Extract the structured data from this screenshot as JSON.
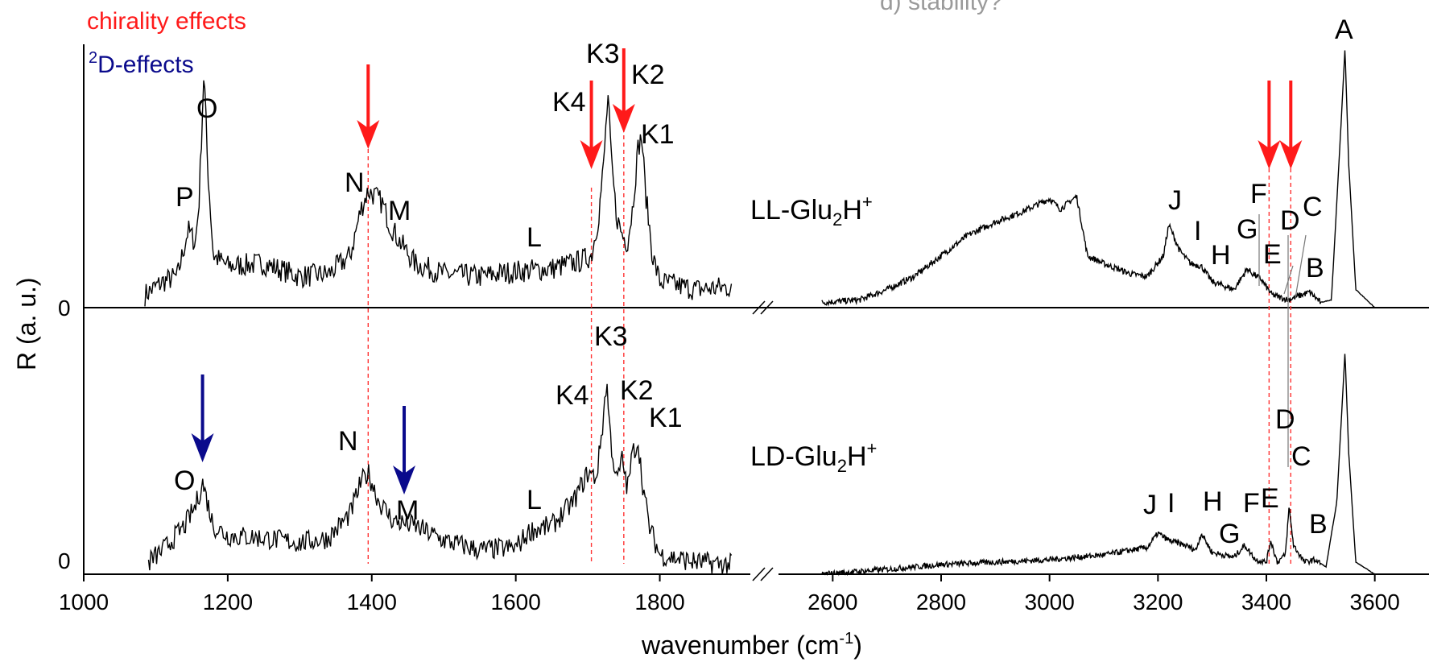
{
  "chart_data": {
    "type": "line",
    "xlabel": "wavenumber (cm",
    "xlabel_sup": "-1",
    "xlabel_close": ")",
    "ylabel": "R (a. u.)",
    "x_ticks": [
      1000,
      1200,
      1400,
      1600,
      1800,
      2600,
      2800,
      3000,
      3200,
      3400,
      3600
    ],
    "x_ranges": [
      [
        1000,
        1900
      ],
      [
        2500,
        3700
      ]
    ],
    "axis_break": true,
    "zero_label": "0",
    "legend": {
      "chirality": "chirality effects",
      "deuteration_sup": "2",
      "deuteration": "D-effects",
      "chirality_color": "#ff1a1a",
      "deuteration_color": "#0a0a8c"
    },
    "faint_text": "d) stability?",
    "series": [
      {
        "name": "LL-Glu",
        "name_sub": "2",
        "name_end": "H",
        "name_sup": "+",
        "low_region": [
          [
            1085,
            0.05
          ],
          [
            1110,
            0.1
          ],
          [
            1130,
            0.12
          ],
          [
            1145,
            0.3
          ],
          [
            1155,
            0.25
          ],
          [
            1160,
            0.4
          ],
          [
            1167,
            0.92
          ],
          [
            1172,
            0.55
          ],
          [
            1180,
            0.2
          ],
          [
            1200,
            0.16
          ],
          [
            1250,
            0.17
          ],
          [
            1300,
            0.12
          ],
          [
            1340,
            0.13
          ],
          [
            1370,
            0.2
          ],
          [
            1385,
            0.38
          ],
          [
            1395,
            0.45
          ],
          [
            1405,
            0.43
          ],
          [
            1415,
            0.4
          ],
          [
            1425,
            0.32
          ],
          [
            1440,
            0.25
          ],
          [
            1460,
            0.17
          ],
          [
            1500,
            0.13
          ],
          [
            1550,
            0.12
          ],
          [
            1600,
            0.14
          ],
          [
            1650,
            0.15
          ],
          [
            1690,
            0.18
          ],
          [
            1705,
            0.2
          ],
          [
            1715,
            0.35
          ],
          [
            1722,
            0.55
          ],
          [
            1728,
            0.82
          ],
          [
            1733,
            0.55
          ],
          [
            1740,
            0.35
          ],
          [
            1748,
            0.28
          ],
          [
            1755,
            0.25
          ],
          [
            1762,
            0.38
          ],
          [
            1770,
            0.62
          ],
          [
            1775,
            0.66
          ],
          [
            1780,
            0.45
          ],
          [
            1790,
            0.2
          ],
          [
            1800,
            0.1
          ],
          [
            1850,
            0.07
          ],
          [
            1900,
            0.08
          ]
        ],
        "high_region": [
          [
            2580,
            0.02
          ],
          [
            2650,
            0.03
          ],
          [
            2700,
            0.07
          ],
          [
            2750,
            0.12
          ],
          [
            2800,
            0.2
          ],
          [
            2850,
            0.28
          ],
          [
            2900,
            0.33
          ],
          [
            2950,
            0.37
          ],
          [
            3000,
            0.42
          ],
          [
            3020,
            0.38
          ],
          [
            3050,
            0.43
          ],
          [
            3070,
            0.2
          ],
          [
            3100,
            0.17
          ],
          [
            3150,
            0.13
          ],
          [
            3180,
            0.12
          ],
          [
            3210,
            0.2
          ],
          [
            3220,
            0.32
          ],
          [
            3240,
            0.22
          ],
          [
            3260,
            0.17
          ],
          [
            3280,
            0.16
          ],
          [
            3300,
            0.1
          ],
          [
            3340,
            0.07
          ],
          [
            3365,
            0.15
          ],
          [
            3375,
            0.13
          ],
          [
            3390,
            0.11
          ],
          [
            3410,
            0.05
          ],
          [
            3440,
            0.03
          ],
          [
            3480,
            0.06
          ],
          [
            3500,
            0.02
          ],
          [
            3520,
            0.03
          ],
          [
            3535,
            0.6
          ],
          [
            3545,
            1.0
          ],
          [
            3552,
            0.55
          ],
          [
            3565,
            0.07
          ],
          [
            3600,
            0.0
          ]
        ]
      },
      {
        "name": "LD-Glu",
        "name_sub": "2",
        "name_end": "H",
        "name_sup": "+",
        "low_region": [
          [
            1090,
            0.05
          ],
          [
            1110,
            0.1
          ],
          [
            1140,
            0.2
          ],
          [
            1155,
            0.28
          ],
          [
            1165,
            0.38
          ],
          [
            1180,
            0.2
          ],
          [
            1200,
            0.16
          ],
          [
            1250,
            0.15
          ],
          [
            1300,
            0.13
          ],
          [
            1340,
            0.15
          ],
          [
            1370,
            0.25
          ],
          [
            1385,
            0.38
          ],
          [
            1395,
            0.42
          ],
          [
            1410,
            0.3
          ],
          [
            1430,
            0.22
          ],
          [
            1460,
            0.2
          ],
          [
            1500,
            0.14
          ],
          [
            1550,
            0.1
          ],
          [
            1600,
            0.11
          ],
          [
            1620,
            0.18
          ],
          [
            1650,
            0.2
          ],
          [
            1680,
            0.3
          ],
          [
            1700,
            0.42
          ],
          [
            1712,
            0.4
          ],
          [
            1720,
            0.6
          ],
          [
            1726,
            0.8
          ],
          [
            1732,
            0.55
          ],
          [
            1740,
            0.38
          ],
          [
            1748,
            0.48
          ],
          [
            1755,
            0.35
          ],
          [
            1762,
            0.5
          ],
          [
            1770,
            0.55
          ],
          [
            1775,
            0.4
          ],
          [
            1785,
            0.2
          ],
          [
            1800,
            0.08
          ],
          [
            1850,
            0.05
          ],
          [
            1900,
            0.04
          ]
        ],
        "high_region": [
          [
            2580,
            0.0
          ],
          [
            2700,
            0.02
          ],
          [
            2800,
            0.04
          ],
          [
            2900,
            0.05
          ],
          [
            3000,
            0.06
          ],
          [
            3100,
            0.08
          ],
          [
            3150,
            0.1
          ],
          [
            3180,
            0.11
          ],
          [
            3200,
            0.17
          ],
          [
            3220,
            0.14
          ],
          [
            3250,
            0.12
          ],
          [
            3270,
            0.1
          ],
          [
            3280,
            0.17
          ],
          [
            3300,
            0.09
          ],
          [
            3340,
            0.07
          ],
          [
            3360,
            0.12
          ],
          [
            3380,
            0.06
          ],
          [
            3400,
            0.05
          ],
          [
            3408,
            0.14
          ],
          [
            3420,
            0.05
          ],
          [
            3435,
            0.08
          ],
          [
            3442,
            0.28
          ],
          [
            3450,
            0.12
          ],
          [
            3470,
            0.05
          ],
          [
            3490,
            0.06
          ],
          [
            3510,
            0.03
          ],
          [
            3530,
            0.3
          ],
          [
            3545,
            0.92
          ],
          [
            3552,
            0.5
          ],
          [
            3565,
            0.05
          ],
          [
            3600,
            0.0
          ]
        ]
      }
    ],
    "peak_labels_top": [
      "P",
      "O",
      "N",
      "M",
      "L",
      "K4",
      "K3",
      "K2",
      "K1",
      "J",
      "I",
      "H",
      "G",
      "F",
      "E",
      "D",
      "C",
      "B",
      "A"
    ],
    "peak_labels_bottom": [
      "O",
      "N",
      "M",
      "L",
      "K4",
      "K3",
      "K2",
      "K1",
      "J",
      "I",
      "H",
      "G",
      "F",
      "E",
      "D",
      "C",
      "B"
    ],
    "chirality_arrows_x": [
      1395,
      1705,
      1750,
      3405,
      3445
    ],
    "deuteration_arrows_x": [
      1165,
      1445
    ],
    "dashed_lines_x": [
      1395,
      1705,
      1750,
      3405,
      3445
    ]
  }
}
